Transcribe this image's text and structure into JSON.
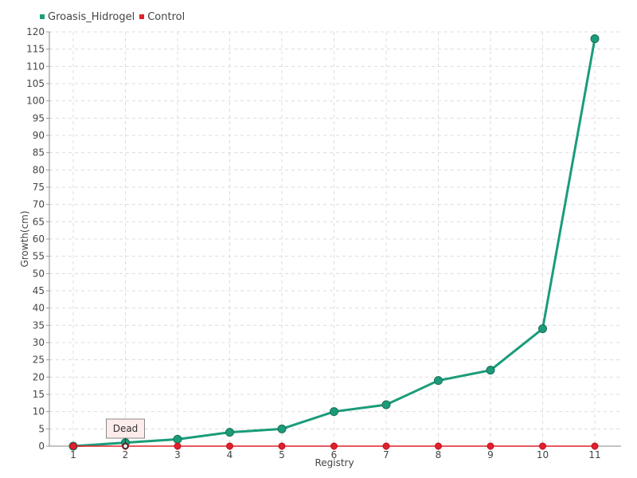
{
  "chart_data": {
    "type": "line",
    "x": [
      "1",
      "2",
      "3",
      "4",
      "5",
      "6",
      "7",
      "8",
      "9",
      "10",
      "11"
    ],
    "series": [
      {
        "name": "Groasis_Hidrogel",
        "color": "#1a9c7a",
        "values": [
          0,
          1,
          2,
          4,
          5,
          10,
          12,
          19,
          22,
          34,
          118
        ]
      },
      {
        "name": "Control",
        "color": "#e0202c",
        "values": [
          0,
          0,
          0,
          0,
          0,
          0,
          0,
          0,
          0,
          0,
          0
        ]
      }
    ],
    "xlabel": "Registry",
    "ylabel": "Growth(cm)",
    "ylim": [
      0,
      120
    ],
    "ytick_step": 5,
    "grid": true,
    "legend_position": "top-left",
    "annotation": {
      "text": "Dead",
      "x": "2",
      "series": "Control"
    }
  }
}
